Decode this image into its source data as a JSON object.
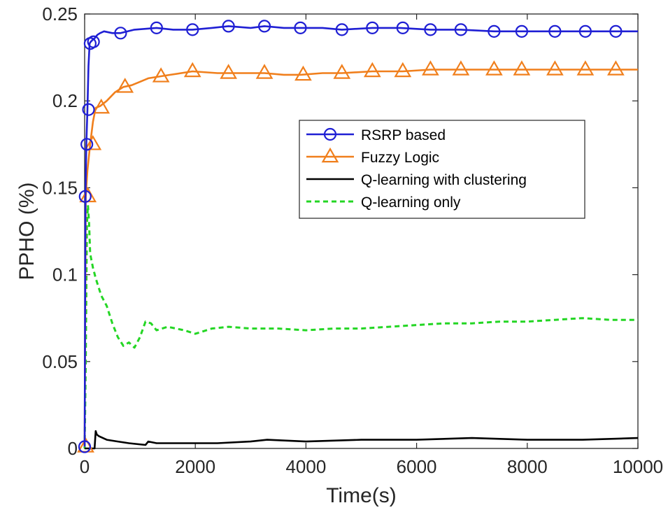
{
  "chart_data": {
    "type": "line",
    "xlabel": "Time(s)",
    "ylabel": "PPHO (%)",
    "xlim": [
      0,
      10000
    ],
    "ylim": [
      0,
      0.25
    ],
    "xticks": [
      0,
      2000,
      4000,
      6000,
      8000,
      10000
    ],
    "xtick_labels": [
      "0",
      "2000",
      "4000",
      "6000",
      "8000",
      "10000"
    ],
    "yticks": [
      0,
      0.05,
      0.1,
      0.15,
      0.2,
      0.25
    ],
    "ytick_labels": [
      "0",
      "0.05",
      "0.1",
      "0.15",
      "0.2",
      "0.25"
    ],
    "grid": false,
    "legend_position": "upper-right",
    "series": [
      {
        "name": "RSRP based",
        "color": "#1f1fd4",
        "marker": "circle",
        "line_style": "solid",
        "x": [
          0,
          15,
          30,
          50,
          70,
          90,
          110,
          140,
          180,
          230,
          280,
          350,
          500,
          650,
          900,
          1300,
          1600,
          1950,
          2300,
          2600,
          3000,
          3250,
          3600,
          3900,
          4300,
          4650,
          5200,
          5700,
          6250,
          6800,
          7400,
          7900,
          8500,
          9050,
          9600,
          10000
        ],
        "y": [
          0.001,
          0.145,
          0.175,
          0.195,
          0.22,
          0.233,
          0.234,
          0.235,
          0.236,
          0.238,
          0.239,
          0.24,
          0.239,
          0.239,
          0.241,
          0.242,
          0.241,
          0.241,
          0.242,
          0.243,
          0.242,
          0.243,
          0.242,
          0.242,
          0.242,
          0.241,
          0.242,
          0.242,
          0.241,
          0.241,
          0.24,
          0.24,
          0.24,
          0.24,
          0.24,
          0.24
        ],
        "marker_x": [
          0,
          10,
          40,
          70,
          100,
          160,
          650,
          1300,
          1950,
          2600,
          3250,
          3900,
          4650,
          5200,
          5750,
          6250,
          6800,
          7400,
          7900,
          8500,
          9050,
          9600
        ],
        "marker_y": [
          0.001,
          0.145,
          0.175,
          0.195,
          0.233,
          0.234,
          0.239,
          0.242,
          0.241,
          0.243,
          0.243,
          0.242,
          0.241,
          0.242,
          0.242,
          0.241,
          0.241,
          0.24,
          0.24,
          0.24,
          0.24,
          0.24
        ]
      },
      {
        "name": "Fuzzy Logic",
        "color": "#f07f1c",
        "marker": "triangle",
        "line_style": "solid",
        "x": [
          0,
          20,
          50,
          100,
          150,
          200,
          280,
          400,
          550,
          700,
          850,
          1000,
          1150,
          1350,
          1550,
          1950,
          2400,
          2600,
          3000,
          3250,
          3600,
          3900,
          4300,
          4650,
          5200,
          5750,
          6250,
          6800,
          7400,
          7900,
          8500,
          9050,
          9600,
          10000
        ],
        "y": [
          0.001,
          0.145,
          0.16,
          0.175,
          0.188,
          0.196,
          0.197,
          0.2,
          0.205,
          0.208,
          0.209,
          0.211,
          0.213,
          0.214,
          0.215,
          0.217,
          0.216,
          0.216,
          0.216,
          0.216,
          0.215,
          0.215,
          0.216,
          0.216,
          0.217,
          0.217,
          0.218,
          0.218,
          0.218,
          0.218,
          0.218,
          0.218,
          0.218,
          0.218
        ],
        "marker_x": [
          20,
          60,
          150,
          300,
          730,
          1380,
          1950,
          2600,
          3250,
          3950,
          4650,
          5200,
          5750,
          6250,
          6800,
          7400,
          7900,
          8500,
          9050,
          9600
        ],
        "marker_y": [
          0.001,
          0.145,
          0.175,
          0.196,
          0.208,
          0.214,
          0.217,
          0.216,
          0.216,
          0.215,
          0.216,
          0.217,
          0.217,
          0.218,
          0.218,
          0.218,
          0.218,
          0.218,
          0.218,
          0.218
        ]
      },
      {
        "name": "Q-learning with clustering",
        "color": "#000000",
        "marker": "none",
        "line_style": "solid",
        "x": [
          0,
          180,
          200,
          220,
          260,
          400,
          600,
          800,
          1100,
          1150,
          1300,
          1600,
          2000,
          2400,
          3000,
          3300,
          4000,
          5000,
          6000,
          7000,
          8000,
          9000,
          10000
        ],
        "y": [
          0,
          0,
          0.01,
          0.008,
          0.007,
          0.005,
          0.004,
          0.003,
          0.002,
          0.004,
          0.003,
          0.003,
          0.003,
          0.003,
          0.004,
          0.005,
          0.004,
          0.005,
          0.005,
          0.006,
          0.005,
          0.005,
          0.006
        ]
      },
      {
        "name": "Q-learning only",
        "color": "#24d624",
        "marker": "none",
        "line_style": "dashed",
        "x": [
          0,
          20,
          40,
          60,
          80,
          100,
          150,
          200,
          300,
          400,
          500,
          600,
          700,
          800,
          900,
          1000,
          1100,
          1200,
          1300,
          1500,
          1800,
          2000,
          2300,
          2600,
          3000,
          3500,
          4000,
          4500,
          5000,
          5500,
          6000,
          6500,
          7000,
          7500,
          8000,
          8500,
          9000,
          9500,
          10000
        ],
        "y": [
          0,
          0.05,
          0.128,
          0.14,
          0.13,
          0.112,
          0.104,
          0.098,
          0.088,
          0.082,
          0.072,
          0.064,
          0.059,
          0.061,
          0.058,
          0.064,
          0.073,
          0.072,
          0.068,
          0.07,
          0.068,
          0.066,
          0.069,
          0.07,
          0.069,
          0.069,
          0.068,
          0.069,
          0.069,
          0.07,
          0.071,
          0.072,
          0.072,
          0.073,
          0.073,
          0.074,
          0.075,
          0.074,
          0.074
        ]
      }
    ]
  }
}
